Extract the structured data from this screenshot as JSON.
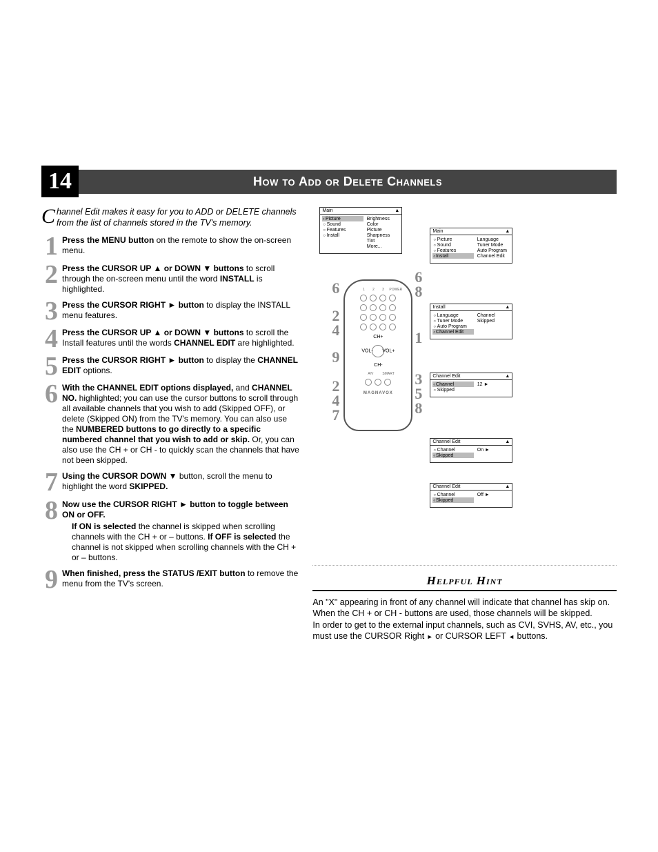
{
  "page_number": "14",
  "header_title": "How to Add or Delete Channels",
  "intro_drop": "C",
  "intro": "hannel Edit makes it easy for you to ADD or DELETE channels from the list of channels stored in the TV's memory.",
  "steps": {
    "s1_b1": "Press the MENU button",
    "s1_t1": " on the remote to show the on-screen menu.",
    "s2_b1": "Press the CURSOR UP ▲ or DOWN ▼ buttons",
    "s2_t1": " to scroll through the on-screen menu until the word ",
    "s2_b2": "INSTALL",
    "s2_t2": " is highlighted.",
    "s3_b1": "Press the CURSOR RIGHT ► button",
    "s3_t1": " to display the INSTALL menu features.",
    "s4_b1": "Press the CURSOR UP ▲ or DOWN ▼ buttons",
    "s4_t1": " to scroll the Install features until the words ",
    "s4_b2": "CHANNEL EDIT",
    "s4_t2": " are highlighted.",
    "s5_b1": "Press the CURSOR RIGHT ► button",
    "s5_t1": " to display the ",
    "s5_b2": "CHANNEL EDIT",
    "s5_t2": " options.",
    "s6_b1": "With the CHANNEL EDIT options displayed,",
    "s6_t1": " and ",
    "s6_b2": "CHANNEL NO.",
    "s6_t2": " highlighted; you can use the cursor buttons  to scroll through all available channels that you wish to add (Skipped OFF), or delete (Skipped ON) from the TV's memory.  You can also use the ",
    "s6_b3": "NUMBERED buttons to go directly to a specific numbered channel that you wish to add or skip.",
    "s6_t3": " Or, you can also use the CH + or CH - to quickly scan the channels that have not been skipped.",
    "s7_b1": "Using the CURSOR DOWN ▼",
    "s7_t1": " button, scroll the menu to highlight the word ",
    "s7_b2": "SKIPPED.",
    "s8_b1": "Now use the CURSOR RIGHT ► button to toggle between ON or OFF.",
    "s8_sub_b1": "If ON is selected",
    "s8_sub_t1": " the channel is skipped when scrolling channels with the CH + or – buttons. ",
    "s8_sub_b2": "If OFF is selected",
    "s8_sub_t2": " the channel is not skipped when scrolling channels with the CH + or – buttons.",
    "s9_b1": "When finished, press the STATUS /EXIT button",
    "s9_t1": " to remove the menu from the TV's screen."
  },
  "remote_brand": "MAGNAVOX",
  "remote_top_labels": [
    "1",
    "2",
    "3",
    "POWER"
  ],
  "remote_dpad": {
    "up": "CH+",
    "down": "CH-",
    "left": "VOL-",
    "right": "VOL+"
  },
  "remote_small": [
    "A/V",
    "SMART"
  ],
  "callouts": {
    "left_top": "6",
    "left_mid": "2\n4",
    "left_bot": "9",
    "left_low": "2\n4\n7",
    "right_top": "6\n8",
    "right_mid": "1",
    "right_low": "3\n5\n8"
  },
  "osd1": {
    "title": "Main",
    "arrow": "▲",
    "left": [
      {
        "t": "Picture",
        "active": true,
        "chev": true
      },
      {
        "t": "Sound",
        "bullet": true
      },
      {
        "t": "Features",
        "bullet": true
      },
      {
        "t": "Install",
        "bullet": true
      }
    ],
    "right": [
      {
        "t": "Brightness"
      },
      {
        "t": "Color"
      },
      {
        "t": "Picture"
      },
      {
        "t": "Sharpness"
      },
      {
        "t": "Tint"
      },
      {
        "t": "More..."
      }
    ],
    "foot": "▼"
  },
  "osd2": {
    "title": "Main",
    "arrow": "▲",
    "left": [
      {
        "t": "Picture",
        "bullet": true
      },
      {
        "t": "Sound",
        "bullet": true
      },
      {
        "t": "Features",
        "bullet": true
      },
      {
        "t": "Install",
        "active": true,
        "chev": true
      }
    ],
    "right": [
      {
        "t": "Language"
      },
      {
        "t": "Tuner Mode"
      },
      {
        "t": "Auto Program"
      },
      {
        "t": "Channel Edit"
      }
    ],
    "foot": "▼"
  },
  "osd3": {
    "title": "Install",
    "arrow": "▲",
    "left": [
      {
        "t": "Language",
        "bullet": true
      },
      {
        "t": "Tuner Mode",
        "bullet": true
      },
      {
        "t": "Auto Program",
        "bullet": true
      },
      {
        "t": "Channel Edit",
        "active": true,
        "chev": true
      }
    ],
    "right": [
      {
        "t": "Channel"
      },
      {
        "t": "Skipped"
      }
    ],
    "foot": "▼"
  },
  "osd4": {
    "title": "Channel Edit",
    "arrow": "▲",
    "left": [
      {
        "t": "Channel",
        "active": true,
        "chev": true
      },
      {
        "t": "Skipped",
        "bullet": true
      }
    ],
    "right": [
      {
        "t": "12  ►"
      }
    ],
    "foot": "▼"
  },
  "osd5": {
    "title": "Channel Edit",
    "arrow": "▲",
    "left": [
      {
        "t": "Channel",
        "bullet": true
      },
      {
        "t": "Skipped",
        "active": true,
        "chev": true
      }
    ],
    "right": [
      {
        "t": "On  ►"
      }
    ],
    "foot": ""
  },
  "osd6": {
    "title": "Channel Edit",
    "arrow": "▲",
    "left": [
      {
        "t": "Channel",
        "bullet": true
      },
      {
        "t": "Skipped",
        "active": true,
        "chev": true
      }
    ],
    "right": [
      {
        "t": "Off  ►"
      }
    ],
    "foot": "▼"
  },
  "hint_title": "Helpful Hint",
  "hint_p1": "An \"X\" appearing in front of any channel will indicate that channel has skip on. When the CH + or CH - buttons are used, those channels will be skipped.",
  "hint_p2a": "In order to get to the external input channels, such as CVI, SVHS, AV, etc., you must use the CURSOR Right ",
  "hint_p2b": " or CURSOR LEFT ",
  "hint_p2c": " buttons."
}
